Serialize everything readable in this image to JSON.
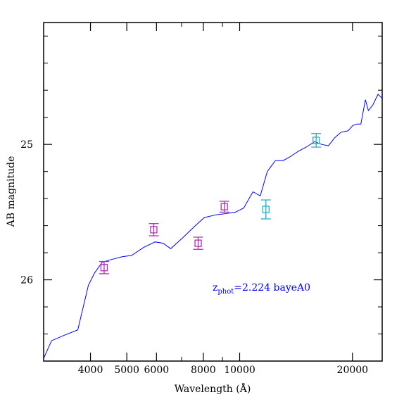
{
  "chart_data": {
    "type": "line",
    "xlabel": "Wavelength (Å)",
    "ylabel": "AB magnitude",
    "x_scale": "log",
    "y_inverted": true,
    "xlim": [
      3000,
      24000
    ],
    "ylim": [
      26.6,
      24.1
    ],
    "x_tick_labels": [
      {
        "value": 4000,
        "label": "4000"
      },
      {
        "value": 5000,
        "label": "5000"
      },
      {
        "value": 6000,
        "label": "6000"
      },
      {
        "value": 8000,
        "label": "8000"
      },
      {
        "value": 10000,
        "label": "10000"
      },
      {
        "value": 20000,
        "label": "20000"
      }
    ],
    "x_minor_ticks": [
      3000,
      7000,
      9000
    ],
    "y_tick_labels": [
      {
        "value": 25,
        "label": "25"
      },
      {
        "value": 26,
        "label": "26"
      }
    ],
    "y_minor_ticks": [
      24.2,
      24.4,
      24.6,
      24.8,
      25.2,
      25.4,
      25.6,
      25.8,
      26.2,
      26.4
    ],
    "grid": false,
    "series": [
      {
        "kind": "sed",
        "color": "#0000ff",
        "x": [
          3000,
          3150,
          3400,
          3700,
          3950,
          4100,
          4300,
          4550,
          4850,
          5150,
          5550,
          5950,
          6250,
          6550,
          7050,
          7550,
          8050,
          8650,
          9250,
          9750,
          10250,
          10850,
          11350,
          11850,
          12450,
          13050,
          13650,
          14350,
          15050,
          15850,
          16550,
          17250,
          17950,
          18650,
          19450,
          20050,
          20550,
          21050,
          21650,
          22050,
          22650,
          23400,
          24000
        ],
        "y": [
          26.58,
          26.45,
          26.41,
          26.37,
          26.04,
          25.95,
          25.87,
          25.85,
          25.83,
          25.82,
          25.76,
          25.72,
          25.73,
          25.77,
          25.69,
          25.61,
          25.54,
          25.52,
          25.51,
          25.5,
          25.47,
          25.35,
          25.38,
          25.2,
          25.12,
          25.12,
          25.09,
          25.05,
          25.02,
          24.98,
          25.0,
          25.01,
          24.95,
          24.91,
          24.9,
          24.86,
          24.85,
          24.85,
          24.67,
          24.75,
          24.71,
          24.63,
          24.66
        ]
      },
      {
        "kind": "photometry",
        "color": "#b030b0",
        "points": [
          {
            "x": 4350,
            "y": 25.91,
            "err": 0.045
          },
          {
            "x": 5900,
            "y": 25.63,
            "err": 0.045
          },
          {
            "x": 7750,
            "y": 25.73,
            "err": 0.045
          },
          {
            "x": 9100,
            "y": 25.46,
            "err": 0.04
          }
        ]
      },
      {
        "kind": "photometry",
        "color": "#20b0c0",
        "points": [
          {
            "x": 11750,
            "y": 25.48,
            "err": 0.07
          },
          {
            "x": 16000,
            "y": 24.97,
            "err": 0.05
          }
        ]
      }
    ],
    "annotation": {
      "base": "z",
      "sub": "phot",
      "text": "=2.224 bayeA0",
      "color": "#0000ff"
    }
  }
}
